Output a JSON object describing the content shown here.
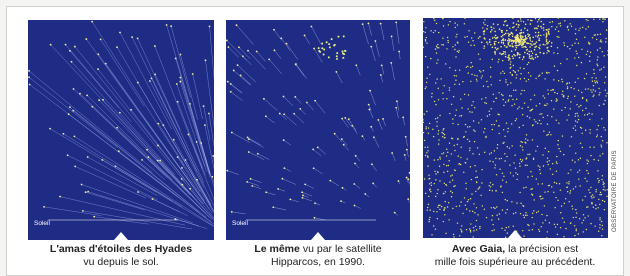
{
  "panels": [
    {
      "sun_label": "Soleil"
    },
    {
      "sun_label": "Soleil"
    },
    {}
  ],
  "credit": "OBSERVATOIRE DE PARIS",
  "captions": [
    {
      "lines": [
        {
          "bold": "L'amas d'étoiles des Hyades"
        },
        {
          "text": "vu depuis le sol."
        }
      ]
    },
    {
      "lines": [
        {
          "bold": "Le même",
          "text": "vu par le satellite"
        },
        {
          "text": "Hipparcos, en 1990."
        }
      ]
    },
    {
      "lines": [
        {
          "bold": "Avec Gaia,",
          "text": "la précision est"
        },
        {
          "text": "mille fois supérieure au précédent."
        }
      ]
    }
  ]
}
